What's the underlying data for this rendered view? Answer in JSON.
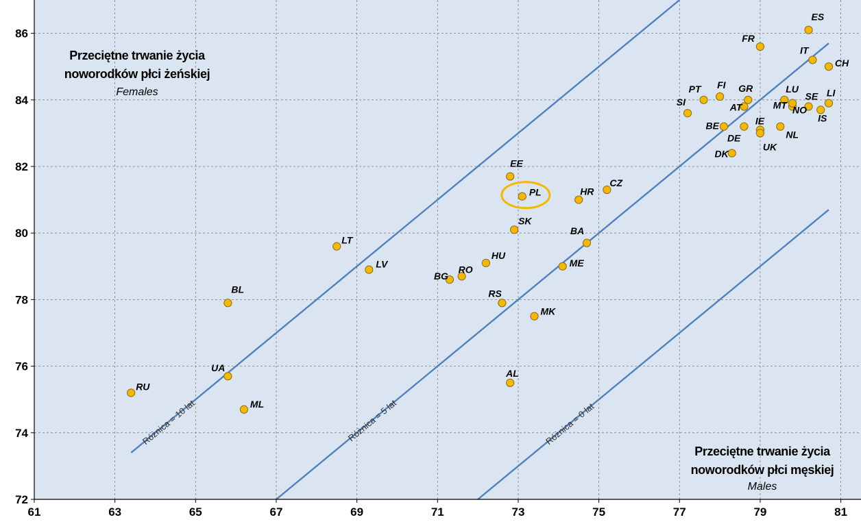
{
  "chart_data": {
    "type": "scatter",
    "xlim": [
      61,
      81.5
    ],
    "ylim": [
      72,
      87
    ],
    "x_ticks": [
      61,
      63,
      65,
      67,
      69,
      71,
      73,
      75,
      77,
      79,
      81
    ],
    "y_ticks": [
      72,
      74,
      76,
      78,
      80,
      82,
      84,
      86
    ],
    "grid": true,
    "colors": {
      "background": "#dbe5f1",
      "grid": "#7f7f7f",
      "line": "#4f81bd",
      "marker": "#f5b800",
      "marker_edge": "#8a6d1a",
      "highlight": "#f5b800"
    },
    "points": [
      {
        "label": "ES",
        "x": 80.2,
        "y": 86.1
      },
      {
        "label": "FR",
        "x": 79.0,
        "y": 85.6
      },
      {
        "label": "IT",
        "x": 80.3,
        "y": 85.2
      },
      {
        "label": "CH",
        "x": 80.7,
        "y": 85.0
      },
      {
        "label": "PT",
        "x": 77.6,
        "y": 84.0
      },
      {
        "label": "FI",
        "x": 78.0,
        "y": 84.1
      },
      {
        "label": "GR",
        "x": 78.7,
        "y": 84.0
      },
      {
        "label": "LU",
        "x": 79.6,
        "y": 84.0
      },
      {
        "label": "SE",
        "x": 80.2,
        "y": 83.8
      },
      {
        "label": "LI",
        "x": 80.7,
        "y": 83.9
      },
      {
        "label": "SI",
        "x": 77.2,
        "y": 83.6
      },
      {
        "label": "AT",
        "x": 78.6,
        "y": 83.8
      },
      {
        "label": "MT",
        "x": 79.8,
        "y": 83.8
      },
      {
        "label": "NO",
        "x": 79.8,
        "y": 83.9
      },
      {
        "label": "IS",
        "x": 80.5,
        "y": 83.7
      },
      {
        "label": "BE",
        "x": 78.1,
        "y": 83.2
      },
      {
        "label": "IE",
        "x": 79.0,
        "y": 83.1
      },
      {
        "label": "DE",
        "x": 78.6,
        "y": 83.2
      },
      {
        "label": "NL",
        "x": 79.5,
        "y": 83.2
      },
      {
        "label": "UK",
        "x": 79.0,
        "y": 83.0
      },
      {
        "label": "DK",
        "x": 78.3,
        "y": 82.4
      },
      {
        "label": "EE",
        "x": 72.8,
        "y": 81.7
      },
      {
        "label": "PL",
        "x": 73.1,
        "y": 81.1
      },
      {
        "label": "HR",
        "x": 74.5,
        "y": 81.0
      },
      {
        "label": "CZ",
        "x": 75.2,
        "y": 81.3
      },
      {
        "label": "SK",
        "x": 72.9,
        "y": 80.1
      },
      {
        "label": "BA",
        "x": 74.7,
        "y": 79.7
      },
      {
        "label": "LT",
        "x": 68.5,
        "y": 79.6
      },
      {
        "label": "LV",
        "x": 69.3,
        "y": 78.9
      },
      {
        "label": "HU",
        "x": 72.2,
        "y": 79.1
      },
      {
        "label": "BG",
        "x": 71.3,
        "y": 78.6
      },
      {
        "label": "RO",
        "x": 71.6,
        "y": 78.7
      },
      {
        "label": "ME",
        "x": 74.1,
        "y": 79.0
      },
      {
        "label": "RS",
        "x": 72.6,
        "y": 77.9
      },
      {
        "label": "MK",
        "x": 73.4,
        "y": 77.5
      },
      {
        "label": "BL",
        "x": 65.8,
        "y": 77.9
      },
      {
        "label": "UA",
        "x": 65.8,
        "y": 75.7
      },
      {
        "label": "ML",
        "x": 66.2,
        "y": 74.7
      },
      {
        "label": "AL",
        "x": 72.8,
        "y": 75.5
      },
      {
        "label": "RU",
        "x": 63.4,
        "y": 75.2
      }
    ],
    "highlight": "PL",
    "reference_lines": [
      {
        "label": "Różnica = 10 lat",
        "offset": 10,
        "x_from": 63.4,
        "x_to": 77.0
      },
      {
        "label": "Różnica = 5 lat",
        "offset": 5,
        "x_from": 67.0,
        "x_to": 80.7
      },
      {
        "label": "Różnica = 0 lat",
        "offset": 0,
        "x_from": 71.9,
        "x_to": 80.7
      }
    ],
    "annotations": {
      "females_title_line1": "Przeciętne trwanie życia",
      "females_title_line2": "noworodków płci żeńskiej",
      "females_en": "Females",
      "males_title_line1": "Przeciętne trwanie życia",
      "males_title_line2": "noworodków płci męskiej",
      "males_en": "Males"
    }
  }
}
